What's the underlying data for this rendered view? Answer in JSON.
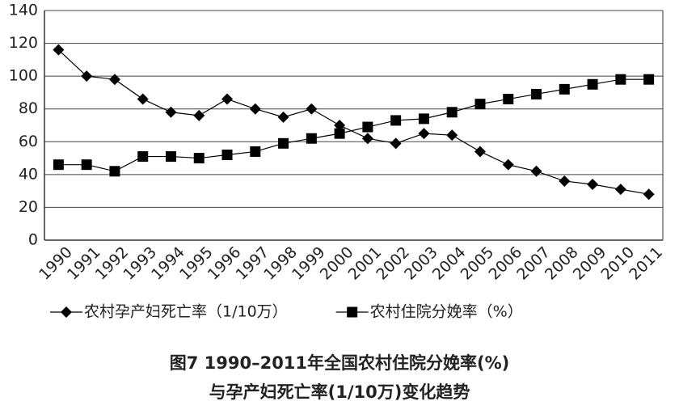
{
  "chart_data": {
    "type": "line",
    "title": [
      "图7  1990–2011年全国农村住院分娩率(%)",
      "与孕产妇死亡率(1/10万)变化趋势"
    ],
    "categories": [
      "1990",
      "1991",
      "1992",
      "1993",
      "1994",
      "1995",
      "1996",
      "1997",
      "1998",
      "1999",
      "2000",
      "2001",
      "2002",
      "2003",
      "2004",
      "2005",
      "2006",
      "2007",
      "2008",
      "2009",
      "2010",
      "2011"
    ],
    "series": [
      {
        "name": "农村孕产妇死亡率（1/10万）",
        "color": "#000000",
        "marker": "diamond",
        "values": [
          116,
          100,
          98,
          86,
          78,
          76,
          86,
          80,
          75,
          80,
          70,
          62,
          59,
          65,
          64,
          54,
          46,
          42,
          36,
          34,
          31,
          28
        ]
      },
      {
        "name": "农村住院分娩率（%）",
        "color": "#000000",
        "marker": "square",
        "values": [
          46,
          46,
          42,
          51,
          51,
          50,
          52,
          54,
          59,
          62,
          65,
          69,
          73,
          74,
          78,
          83,
          86,
          89,
          92,
          95,
          98,
          98
        ]
      }
    ],
    "ylim": [
      0,
      140
    ],
    "yticks": [
      0,
      20,
      40,
      60,
      80,
      100,
      120,
      140
    ],
    "grid": true,
    "legend": "bottom"
  }
}
